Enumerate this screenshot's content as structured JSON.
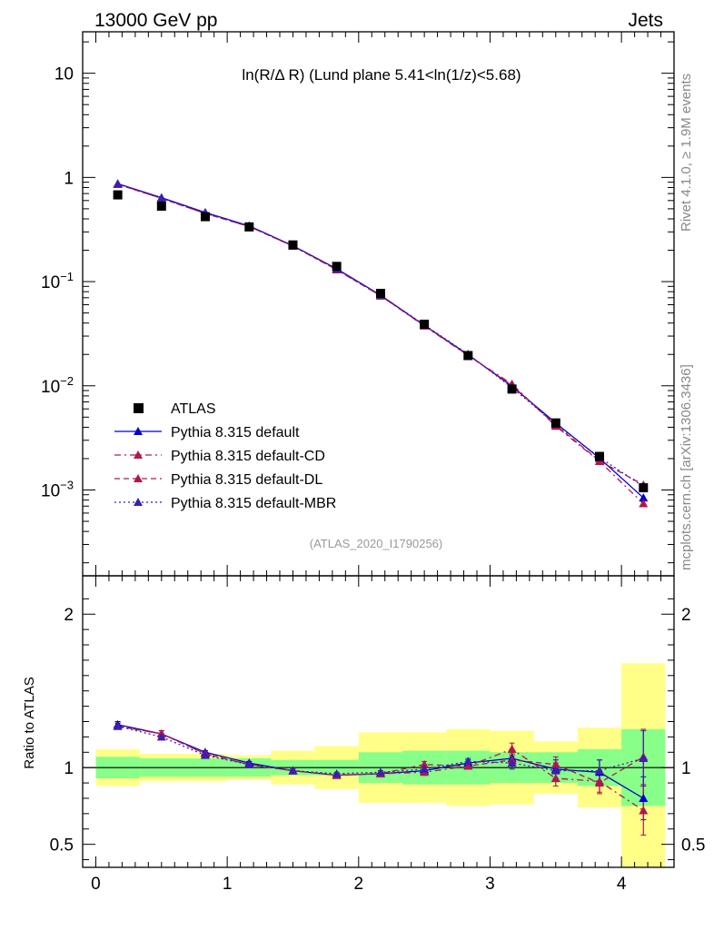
{
  "header": {
    "left": "13000 GeV pp",
    "right": "Jets",
    "title": "ln(R/Δ R) (Lund plane 5.41<ln(1/z)<5.68)",
    "side_top": "Rivet 4.1.0, ≥ 1.9M events",
    "side_bottom": "mcplots.cern.ch [arXiv:1306.3436]",
    "watermark": "(ATLAS_2020_I1790256)"
  },
  "chart_data": {
    "type": "line",
    "xlabel": "",
    "ylabel": "",
    "ratio_ylabel": "Ratio to ATLAS",
    "xlim": [
      -0.1,
      4.4
    ],
    "ylim": [
      0.00015,
      25
    ],
    "yscale": "log",
    "ratio_ylim": [
      0.35,
      2.25
    ],
    "x_ticks": [
      "0",
      "1",
      "2",
      "3",
      "4"
    ],
    "y_ticks": [
      {
        "value": 10,
        "base": "10",
        "exp": ""
      },
      {
        "value": 1,
        "base": "1",
        "exp": ""
      },
      {
        "value": 0.1,
        "base": "10",
        "exp": "−1"
      },
      {
        "value": 0.01,
        "base": "10",
        "exp": "−2"
      },
      {
        "value": 0.001,
        "base": "10",
        "exp": "−3"
      }
    ],
    "ratio_y_ticks": [
      "0.5",
      "1",
      "2"
    ],
    "x": [
      0.167,
      0.5,
      0.833,
      1.167,
      1.5,
      1.833,
      2.167,
      2.5,
      2.833,
      3.167,
      3.5,
      3.833,
      4.167
    ],
    "bin_edges": [
      0,
      0.333,
      0.667,
      1.0,
      1.333,
      1.667,
      2.0,
      2.333,
      2.667,
      3.0,
      3.333,
      3.667,
      4.0,
      4.333
    ],
    "data": {
      "name": "ATLAS",
      "values": [
        0.68,
        0.53,
        0.42,
        0.335,
        0.225,
        0.14,
        0.077,
        0.039,
        0.0195,
        0.0093,
        0.0044,
        0.0021,
        0.00105
      ],
      "stat_band_ratio": [
        0.07,
        0.06,
        0.06,
        0.06,
        0.05,
        0.05,
        0.1,
        0.11,
        0.11,
        0.1,
        0.1,
        0.12,
        0.25
      ],
      "total_band_ratio": [
        0.12,
        0.09,
        0.09,
        0.08,
        0.11,
        0.14,
        0.23,
        0.23,
        0.25,
        0.24,
        0.17,
        0.26,
        0.68
      ]
    },
    "series": [
      {
        "name": "Pythia 8.315 default",
        "color": "#0000cc",
        "dash": "",
        "values": [
          0.87,
          0.64,
          0.46,
          0.343,
          0.221,
          0.133,
          0.074,
          0.038,
          0.0199,
          0.0099,
          0.0044,
          0.00202,
          0.00084
        ],
        "ratio": [
          1.28,
          1.22,
          1.1,
          1.03,
          0.98,
          0.95,
          0.96,
          0.98,
          1.03,
          1.06,
          0.99,
          0.97,
          0.8
        ],
        "ratio_err": [
          0.02,
          0.02,
          0.01,
          0.01,
          0.01,
          0.01,
          0.01,
          0.02,
          0.02,
          0.04,
          0.06,
          0.08,
          0.14
        ]
      },
      {
        "name": "Pythia 8.315 default-CD",
        "color": "#b0174f",
        "dash": "7,4,2,4",
        "values": [
          0.86,
          0.63,
          0.45,
          0.338,
          0.219,
          0.13,
          0.073,
          0.0375,
          0.0195,
          0.0104,
          0.0041,
          0.00188,
          0.00074
        ],
        "ratio": [
          1.27,
          1.22,
          1.09,
          1.02,
          0.98,
          0.95,
          0.96,
          0.97,
          1.01,
          1.12,
          0.93,
          0.91,
          0.72
        ],
        "ratio_err": [
          0.02,
          0.02,
          0.01,
          0.01,
          0.01,
          0.01,
          0.01,
          0.02,
          0.02,
          0.04,
          0.05,
          0.07,
          0.16
        ]
      },
      {
        "name": "Pythia 8.315 default-DL",
        "color": "#b0174f",
        "dash": "6,4",
        "values": [
          0.86,
          0.63,
          0.45,
          0.338,
          0.219,
          0.13,
          0.073,
          0.0378,
          0.0196,
          0.0101,
          0.0042,
          0.0019,
          0.00112
        ],
        "ratio": [
          1.27,
          1.22,
          1.09,
          1.02,
          0.98,
          0.95,
          0.96,
          1.02,
          1.01,
          1.05,
          1.02,
          0.9,
          1.07
        ],
        "ratio_err": [
          0.02,
          0.02,
          0.01,
          0.01,
          0.01,
          0.01,
          0.01,
          0.02,
          0.02,
          0.04,
          0.05,
          0.07,
          0.18
        ]
      },
      {
        "name": "Pythia 8.315 default-MBR",
        "color": "#3a1fb0",
        "dash": "2,3",
        "values": [
          0.865,
          0.635,
          0.455,
          0.34,
          0.22,
          0.132,
          0.0735,
          0.0385,
          0.0201,
          0.0096,
          0.0043,
          0.00205,
          0.00108
        ],
        "ratio": [
          1.27,
          1.2,
          1.08,
          1.02,
          0.98,
          0.96,
          0.97,
          0.99,
          1.04,
          1.03,
          0.98,
          0.98,
          1.06
        ],
        "ratio_err": [
          0.02,
          0.02,
          0.01,
          0.01,
          0.01,
          0.01,
          0.01,
          0.02,
          0.02,
          0.04,
          0.05,
          0.07,
          0.18
        ]
      }
    ],
    "legend_position": "bottom-left"
  }
}
